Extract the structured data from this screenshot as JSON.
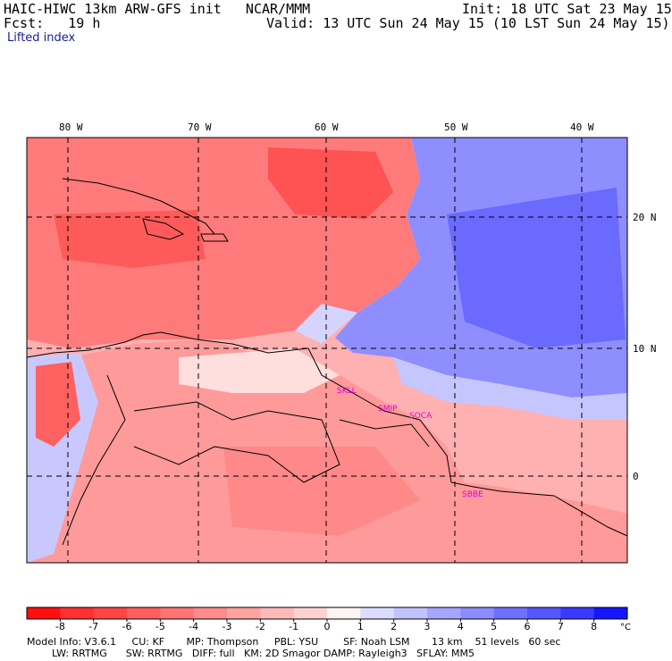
{
  "header": {
    "model_line": "HAIC-HIWC 13km ARW-GFS init   NCAR/MMM",
    "init_line": "Init: 18 UTC Sat 23 May 15",
    "fcst_line": "Fcst:   19 h",
    "valid_line": "Valid: 13 UTC Sun 24 May 15 (10 LST Sun 24 May 15)",
    "field_name": "Lifted index"
  },
  "map": {
    "lon_labels": [
      "80 W",
      "70 W",
      "60 W",
      "50 W",
      "40 W"
    ],
    "lat_labels": [
      "20 N",
      "10 N",
      "0"
    ],
    "stations": [
      "SKLL",
      "SMIP",
      "SOCA",
      "SBBE"
    ],
    "colors": {
      "station": "#e000e0",
      "grid": "#000000",
      "coast": "#000000"
    }
  },
  "colorbar": {
    "tick_labels": [
      "-8",
      "-7",
      "-6",
      "-5",
      "-4",
      "-3",
      "-2",
      "-1",
      "0",
      "1",
      "2",
      "3",
      "4",
      "5",
      "6",
      "7",
      "8"
    ],
    "unit": "°C",
    "colors": [
      "#ff1010",
      "#ff3030",
      "#ff4646",
      "#ff5e5e",
      "#ff7474",
      "#ff8c8c",
      "#ffa2a2",
      "#ffbaba",
      "#ffd2d2",
      "#fff4f4",
      "#dcdcff",
      "#c2c2ff",
      "#a6a6ff",
      "#8c8cff",
      "#7070ff",
      "#5656ff",
      "#3a3aff",
      "#1616ff"
    ]
  },
  "footer": {
    "line1": "Model Info: V3.6.1     CU: KF       MP: Thompson     PBL: YSU        SF: Noah LSM       13 km    51 levels   60 sec",
    "line2": "        LW: RRTMG      SW: RRTMG   DIFF: full   KM: 2D Smagor DAMP: Rayleigh3   SFLAY: MM5"
  }
}
